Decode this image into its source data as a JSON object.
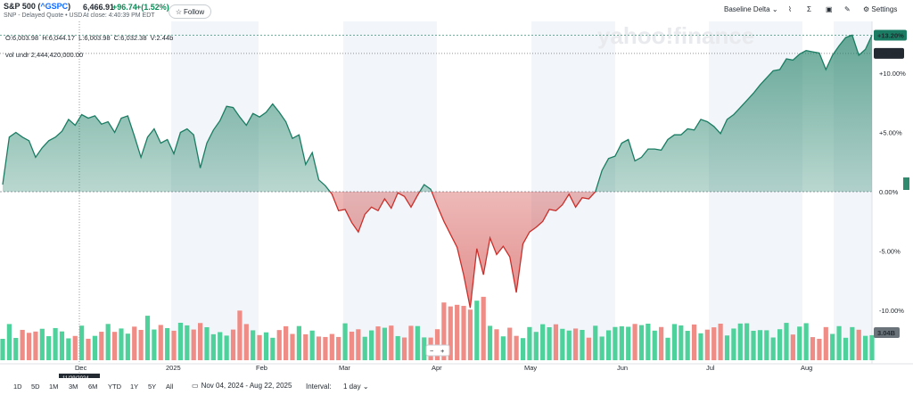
{
  "header": {
    "title_prefix": "S&P 500 (",
    "symbol": "^GSPC",
    "title_suffix": ")",
    "subtitle": "SNP - Delayed Quote • USD",
    "price": "6,466.91",
    "change": "+96.74",
    "change_pct": "+(1.52%)",
    "close_time": "At close: 4:40:39 PM EDT",
    "follow_label": "Follow",
    "baseline_label": "Baseline Delta",
    "settings_label": "Settings"
  },
  "ohlc": {
    "o": "O:6,003.98",
    "h": "H:6,044.17",
    "l": "L:6,003.98",
    "c": "C:6,032.38",
    "v": "V:2.44b"
  },
  "vol_undr": "vol undr  2,444,420,000.00",
  "watermark": "yahoo!finance",
  "crosshair_date": "11/29/2024",
  "zoom": {
    "minus": "−",
    "plus": "+"
  },
  "bottom": {
    "ranges": [
      "1D",
      "5D",
      "1M",
      "3M",
      "6M",
      "YTD",
      "1Y",
      "5Y",
      "All"
    ],
    "date_range": "Nov 04, 2024 - Aug 22, 2025",
    "interval_label": "Interval:",
    "interval_value": "1 day"
  },
  "colors": {
    "up": "#1a7d63",
    "down": "#c9302c",
    "vol_up": "#4fd19b",
    "vol_down": "#f08c86",
    "flag_up": "#1a7d63",
    "flag_dark": "#232a31"
  },
  "chart_data": {
    "type": "area",
    "title": "S&P 500 Baseline Delta",
    "x_labels": [
      "Dec",
      "2025",
      "Feb",
      "Mar",
      "Apr",
      "May",
      "Jun",
      "Jul",
      "Aug"
    ],
    "y_ticks": [
      "+10.00%",
      "+5.00%",
      "0.00%",
      "-5.00%",
      "-10.00%"
    ],
    "ylim": [
      -10.0,
      13.2
    ],
    "flags": [
      "+13.20%",
      "+11.66%"
    ],
    "volume_flag": "3.04B",
    "series_pct": [
      0.6,
      4.6,
      5.0,
      4.6,
      4.3,
      2.9,
      3.7,
      4.3,
      4.6,
      5.1,
      6.1,
      5.6,
      6.5,
      6.2,
      6.4,
      5.7,
      5.9,
      5.0,
      6.2,
      6.4,
      4.7,
      2.9,
      4.6,
      5.3,
      4.1,
      4.4,
      3.2,
      5.0,
      5.3,
      4.8,
      2.0,
      4.1,
      5.2,
      6.0,
      7.2,
      7.1,
      6.3,
      5.6,
      6.6,
      6.3,
      6.7,
      7.4,
      6.7,
      5.9,
      4.5,
      4.8,
      2.3,
      3.3,
      1.0,
      0.5,
      -0.2,
      -1.6,
      -1.5,
      -2.6,
      -3.4,
      -1.9,
      -1.3,
      -1.6,
      -0.6,
      -1.4,
      -0.1,
      -0.4,
      -1.3,
      -0.3,
      0.6,
      0.2,
      -1.2,
      -2.5,
      -3.6,
      -4.7,
      -7.0,
      -9.8,
      -4.8,
      -7.0,
      -3.9,
      -5.3,
      -4.6,
      -5.5,
      -8.5,
      -4.4,
      -3.4,
      -3.0,
      -2.5,
      -1.5,
      -1.6,
      -1.1,
      -0.2,
      -1.3,
      -0.5,
      -0.6,
      0.0,
      1.8,
      2.8,
      3.0,
      4.1,
      4.4,
      2.6,
      2.9,
      3.6,
      3.6,
      3.5,
      4.4,
      4.8,
      4.8,
      5.3,
      5.2,
      6.1,
      5.9,
      5.5,
      4.9,
      6.1,
      6.5,
      7.1,
      7.7,
      8.3,
      9.0,
      9.6,
      10.2,
      10.3,
      11.2,
      11.1,
      11.6,
      11.9,
      11.8,
      11.7,
      10.3,
      11.5,
      12.3,
      13.0,
      13.2,
      11.5,
      12.0,
      13.2
    ]
  }
}
